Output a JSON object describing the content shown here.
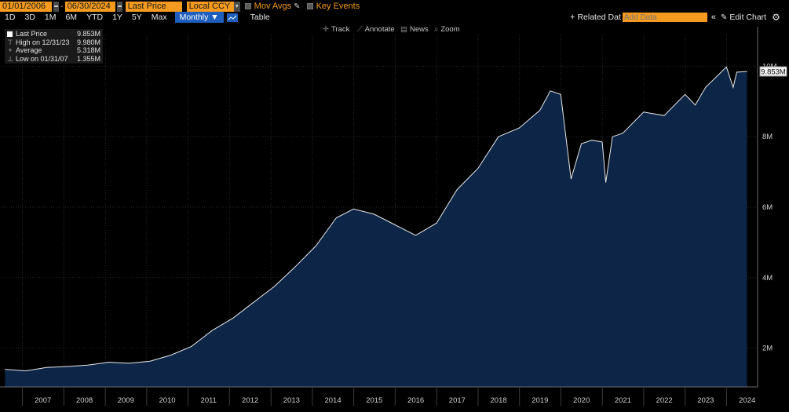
{
  "toolbar": {
    "start_date": "01/01/2006",
    "end_date": "06/30/2024",
    "field": "Last Price",
    "currency": "Local CCY",
    "mov_avgs": "Mov Avgs",
    "key_events": "Key Events",
    "related_data": "Related Dat",
    "add_data_placeholder": "Add Data",
    "edit_chart": "Edit Chart",
    "periods": [
      "1D",
      "3D",
      "1M",
      "6M",
      "YTD",
      "1Y",
      "5Y",
      "Max"
    ],
    "frequency": "Monthly",
    "table": "Table",
    "tools": [
      "Track",
      "Annotate",
      "News",
      "Zoom"
    ]
  },
  "legend": {
    "last_price_label": "Last Price",
    "last_price_value": "9.853M",
    "high_label": "High on 12/31/23",
    "high_value": "9.980M",
    "average_label": "Average",
    "average_value": "5.318M",
    "low_label": "Low on 01/31/07",
    "low_value": "1.355M"
  },
  "colors": {
    "background": "#000000",
    "area_fill": "#0d2648",
    "line": "#e8e8e8",
    "accent": "#f39a1f",
    "selected": "#1f5fbf"
  },
  "chart_data": {
    "type": "area",
    "title": "",
    "xlabel": "",
    "ylabel": "",
    "x_tick_labels": [
      "2007",
      "2008",
      "2009",
      "2010",
      "2011",
      "2012",
      "2013",
      "2014",
      "2015",
      "2016",
      "2017",
      "2018",
      "2019",
      "2020",
      "2021",
      "2022",
      "2023",
      "2024"
    ],
    "y_tick_labels": [
      "2M",
      "4M",
      "6M",
      "8M",
      "10M"
    ],
    "y_ticks": [
      2,
      4,
      6,
      8,
      10
    ],
    "ylim": [
      0.9,
      10.9
    ],
    "xlim": [
      "2006-07-01",
      "2024-10-01"
    ],
    "last_value_label": "9.853M",
    "grid": true,
    "series": [
      {
        "points": [
          [
            "2006-07-31",
            1.4
          ],
          [
            "2007-01-31",
            1.355
          ],
          [
            "2007-07-31",
            1.45
          ],
          [
            "2008-01-31",
            1.48
          ],
          [
            "2008-07-31",
            1.52
          ],
          [
            "2009-01-31",
            1.6
          ],
          [
            "2009-07-31",
            1.57
          ],
          [
            "2010-01-31",
            1.63
          ],
          [
            "2010-07-31",
            1.8
          ],
          [
            "2011-01-31",
            2.05
          ],
          [
            "2011-07-31",
            2.5
          ],
          [
            "2012-01-31",
            2.85
          ],
          [
            "2012-07-31",
            3.3
          ],
          [
            "2013-01-31",
            3.75
          ],
          [
            "2013-07-31",
            4.3
          ],
          [
            "2014-01-31",
            4.9
          ],
          [
            "2014-07-31",
            5.7
          ],
          [
            "2014-12-31",
            5.95
          ],
          [
            "2015-06-30",
            5.8
          ],
          [
            "2015-12-31",
            5.5
          ],
          [
            "2016-06-30",
            5.2
          ],
          [
            "2016-12-31",
            5.55
          ],
          [
            "2017-06-30",
            6.5
          ],
          [
            "2017-12-31",
            7.1
          ],
          [
            "2018-06-30",
            8.0
          ],
          [
            "2018-12-31",
            8.25
          ],
          [
            "2019-06-30",
            8.75
          ],
          [
            "2019-09-30",
            9.3
          ],
          [
            "2019-12-31",
            9.2
          ],
          [
            "2020-03-31",
            6.8
          ],
          [
            "2020-06-30",
            7.8
          ],
          [
            "2020-09-30",
            7.9
          ],
          [
            "2020-12-31",
            7.85
          ],
          [
            "2021-01-31",
            6.7
          ],
          [
            "2021-03-31",
            8.0
          ],
          [
            "2021-06-30",
            8.1
          ],
          [
            "2021-12-31",
            8.7
          ],
          [
            "2022-06-30",
            8.6
          ],
          [
            "2022-12-31",
            9.2
          ],
          [
            "2023-03-31",
            8.9
          ],
          [
            "2023-06-30",
            9.4
          ],
          [
            "2023-12-31",
            9.98
          ],
          [
            "2024-02-29",
            9.4
          ],
          [
            "2024-03-31",
            9.83
          ],
          [
            "2024-06-30",
            9.853
          ]
        ]
      }
    ]
  }
}
